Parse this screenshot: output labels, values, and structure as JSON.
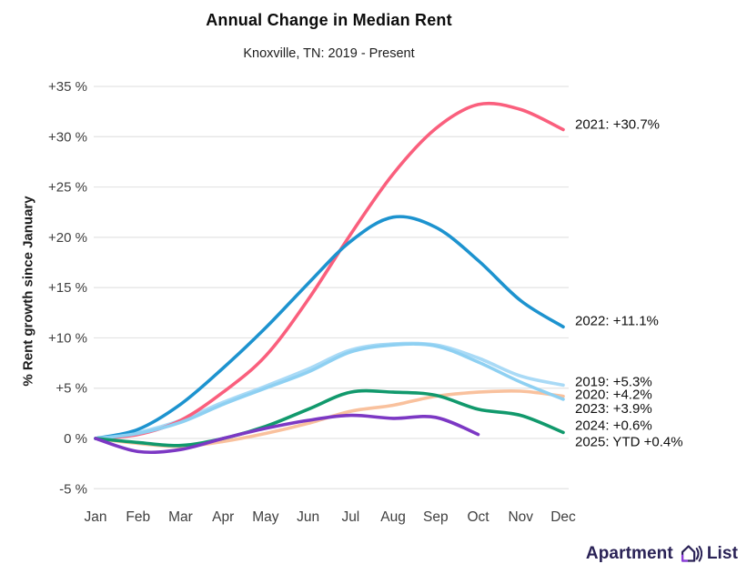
{
  "header": {
    "title": "Annual Change in Median Rent",
    "subtitle": "Knoxville, TN: 2019 - Present"
  },
  "chart_data": {
    "type": "line",
    "title": "Annual Change in Median Rent",
    "subtitle": "Knoxville, TN: 2019 - Present",
    "xlabel": "",
    "ylabel": "% Rent growth since January",
    "ylim": [
      -5,
      35
    ],
    "grid": "horizontal",
    "legend_position": "right-end-labels",
    "categories": [
      "Jan",
      "Feb",
      "Mar",
      "Apr",
      "May",
      "Jun",
      "Jul",
      "Aug",
      "Sep",
      "Oct",
      "Nov",
      "Dec"
    ],
    "yticks": [
      {
        "value": 35,
        "label": "+35 %"
      },
      {
        "value": 30,
        "label": "+30 %"
      },
      {
        "value": 25,
        "label": "+25 %"
      },
      {
        "value": 20,
        "label": "+20 %"
      },
      {
        "value": 15,
        "label": "+15 %"
      },
      {
        "value": 10,
        "label": "+10 %"
      },
      {
        "value": 5,
        "label": "+5 %"
      },
      {
        "value": 0,
        "label": "0 %"
      },
      {
        "value": -5,
        "label": "-5 %"
      }
    ],
    "series": [
      {
        "name": "2019",
        "color": "#a9daf6",
        "end_label": "2019: +5.3%",
        "values": [
          0,
          0.6,
          1.8,
          3.6,
          5.2,
          6.9,
          8.8,
          9.4,
          9.3,
          8.0,
          6.2,
          5.3
        ]
      },
      {
        "name": "2020",
        "color": "#f9c19d",
        "end_label": "2020: +4.2%",
        "values": [
          0,
          -0.5,
          -0.8,
          -0.3,
          0.5,
          1.5,
          2.7,
          3.3,
          4.2,
          4.6,
          4.7,
          4.2
        ]
      },
      {
        "name": "2021",
        "color": "#fa5f7d",
        "end_label": "2021: +30.7%",
        "values": [
          0,
          0.4,
          1.8,
          4.6,
          8.2,
          13.8,
          20.3,
          26.3,
          30.8,
          33.2,
          32.7,
          30.7
        ]
      },
      {
        "name": "2022",
        "color": "#1d93cf",
        "end_label": "2022: +11.1%",
        "values": [
          0,
          0.9,
          3.4,
          7.0,
          11.0,
          15.4,
          19.6,
          22.0,
          21.0,
          17.7,
          13.7,
          11.1
        ]
      },
      {
        "name": "2023",
        "color": "#8ed0f2",
        "end_label": "2023: +3.9%",
        "values": [
          0,
          0.5,
          1.6,
          3.4,
          5.0,
          6.6,
          8.6,
          9.3,
          9.2,
          7.6,
          5.6,
          3.9
        ]
      },
      {
        "name": "2024",
        "color": "#11996c",
        "end_label": "2024: +0.6%",
        "values": [
          0,
          -0.4,
          -0.7,
          0.0,
          1.2,
          2.9,
          4.6,
          4.6,
          4.3,
          2.9,
          2.3,
          0.6
        ]
      },
      {
        "name": "2025",
        "color": "#7c38c4",
        "end_label": "2025: YTD +0.4%",
        "values": [
          0,
          -1.3,
          -1.1,
          0.0,
          1.0,
          1.8,
          2.3,
          2.0,
          2.1,
          0.4
        ]
      }
    ]
  },
  "style": {
    "gridline_color": "#e3e3e3",
    "tick_label_color": "#3f3f3f",
    "end_label_color": "#0f0f0f"
  },
  "logo": {
    "word_left": "Apartment",
    "word_right": "List",
    "icon": "apartment-list-house-icon",
    "text_color": "#2a2256",
    "accent_color": "#8d3cdd"
  }
}
